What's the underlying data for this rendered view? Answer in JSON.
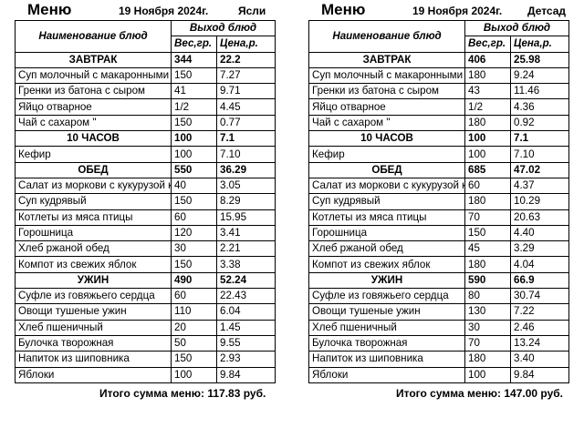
{
  "menus": [
    {
      "title": "Меню",
      "date": "19 Ноября 2024г.",
      "group": "Ясли",
      "header": {
        "name": "Наименование блюд",
        "output": "Выход блюд",
        "weight": "Вес,гр.",
        "price": "Цена,р."
      },
      "rows": [
        {
          "type": "section",
          "name": "ЗАВТРАК",
          "weight": "344",
          "price": "22.2"
        },
        {
          "type": "item",
          "name": "Суп молочный с макаронными",
          "weight": "150",
          "price": "7.27"
        },
        {
          "type": "item",
          "name": "Гренки из батона с сыром",
          "weight": "41",
          "price": "9.71"
        },
        {
          "type": "item",
          "name": "Яйцо отварное",
          "weight": "1/2",
          "price": "4.45"
        },
        {
          "type": "item",
          "name": "Чай с сахаром \"",
          "weight": "150",
          "price": "0.77"
        },
        {
          "type": "section",
          "name": "10 ЧАСОВ",
          "weight": "100",
          "price": "7.1"
        },
        {
          "type": "item",
          "name": "Кефир",
          "weight": "100",
          "price": "7.10"
        },
        {
          "type": "section",
          "name": "ОБЕД",
          "weight": "550",
          "price": "36.29"
        },
        {
          "type": "item",
          "name": "Салат из моркови с кукурузой к",
          "weight": "40",
          "price": "3.05"
        },
        {
          "type": "item",
          "name": "Суп кудрявый",
          "weight": "150",
          "price": "8.29"
        },
        {
          "type": "item",
          "name": "Котлеты из мяса птицы",
          "weight": "60",
          "price": "15.95"
        },
        {
          "type": "item",
          "name": "Горошница",
          "weight": "120",
          "price": "3.41"
        },
        {
          "type": "item",
          "name": "Хлеб ржаной обед",
          "weight": "30",
          "price": "2.21"
        },
        {
          "type": "item",
          "name": "Компот из свежих яблок",
          "weight": "150",
          "price": "3.38"
        },
        {
          "type": "section",
          "name": "УЖИН",
          "weight": "490",
          "price": "52.24"
        },
        {
          "type": "item",
          "name": "Суфле из говяжьего сердца",
          "weight": "60",
          "price": "22.43"
        },
        {
          "type": "item",
          "name": "Овощи тушеные ужин",
          "weight": "110",
          "price": "6.04"
        },
        {
          "type": "item",
          "name": "Хлеб пшеничный",
          "weight": "20",
          "price": "1.45"
        },
        {
          "type": "item",
          "name": "Булочка творожная",
          "weight": "50",
          "price": "9.55"
        },
        {
          "type": "item",
          "name": "Напиток из шиповника",
          "weight": "150",
          "price": "2.93"
        },
        {
          "type": "item",
          "name": "Яблоки",
          "weight": "100",
          "price": "9.84"
        }
      ],
      "total_label": "Итого сумма меню:",
      "total_value": "117.83 руб."
    },
    {
      "title": "Меню",
      "date": "19 Ноября 2024г.",
      "group": "Детсад",
      "header": {
        "name": "Наименование блюд",
        "output": "Выход блюд",
        "weight": "Вес,гр.",
        "price": "Цена,р."
      },
      "rows": [
        {
          "type": "section",
          "name": "ЗАВТРАК",
          "weight": "406",
          "price": "25.98"
        },
        {
          "type": "item",
          "name": "Суп молочный с макаронными",
          "weight": "180",
          "price": "9.24"
        },
        {
          "type": "item",
          "name": "Гренки из батона с сыром",
          "weight": "43",
          "price": "11.46"
        },
        {
          "type": "item",
          "name": "Яйцо отварное",
          "weight": "1/2",
          "price": "4.36"
        },
        {
          "type": "item",
          "name": "Чай с сахаром \"",
          "weight": "180",
          "price": "0.92"
        },
        {
          "type": "section",
          "name": "10 ЧАСОВ",
          "weight": "100",
          "price": "7.1"
        },
        {
          "type": "item",
          "name": "Кефир",
          "weight": "100",
          "price": "7.10"
        },
        {
          "type": "section",
          "name": "ОБЕД",
          "weight": "685",
          "price": "47.02"
        },
        {
          "type": "item",
          "name": "Салат из моркови с кукурузой к",
          "weight": "60",
          "price": "4.37"
        },
        {
          "type": "item",
          "name": "Суп кудрявый",
          "weight": "180",
          "price": "10.29"
        },
        {
          "type": "item",
          "name": "Котлеты из мяса птицы",
          "weight": "70",
          "price": "20.63"
        },
        {
          "type": "item",
          "name": "Горошница",
          "weight": "150",
          "price": "4.40"
        },
        {
          "type": "item",
          "name": "Хлеб ржаной обед",
          "weight": "45",
          "price": "3.29"
        },
        {
          "type": "item",
          "name": "Компот из свежих яблок",
          "weight": "180",
          "price": "4.04"
        },
        {
          "type": "section",
          "name": "УЖИН",
          "weight": "590",
          "price": "66.9"
        },
        {
          "type": "item",
          "name": "Суфле из говяжьего сердца",
          "weight": "80",
          "price": "30.74"
        },
        {
          "type": "item",
          "name": "Овощи тушеные ужин",
          "weight": "130",
          "price": "7.22"
        },
        {
          "type": "item",
          "name": "Хлеб пшеничный",
          "weight": "30",
          "price": "2.46"
        },
        {
          "type": "item",
          "name": "Булочка творожная",
          "weight": "70",
          "price": "13.24"
        },
        {
          "type": "item",
          "name": "Напиток из шиповника",
          "weight": "180",
          "price": "3.40"
        },
        {
          "type": "item",
          "name": "Яблоки",
          "weight": "100",
          "price": "9.84"
        }
      ],
      "total_label": "Итого сумма меню:",
      "total_value": "147.00 руб."
    }
  ]
}
